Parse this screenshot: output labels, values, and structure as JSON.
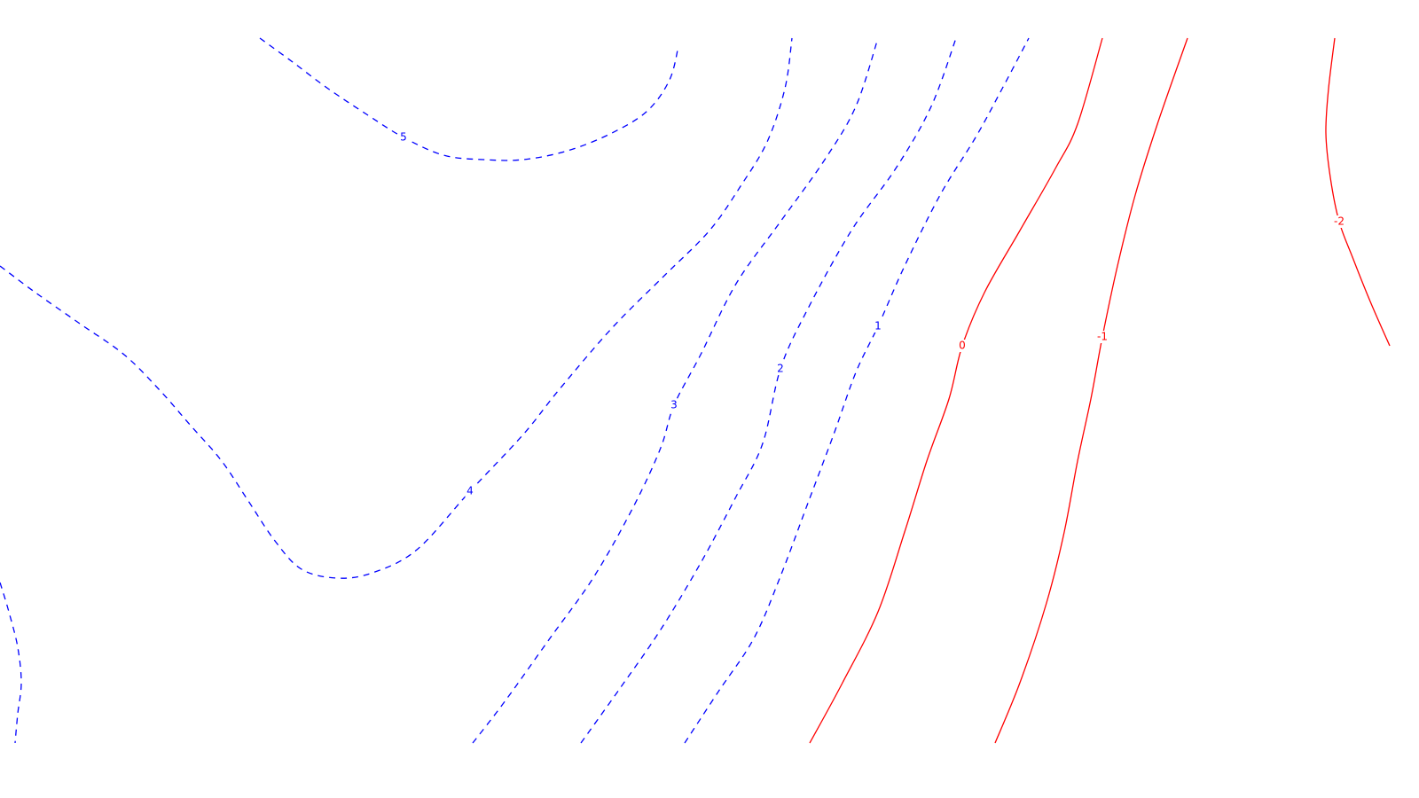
{
  "chart_data": {
    "type": "contour",
    "title": "",
    "xlabel": "",
    "ylabel": "",
    "xlim": [
      0,
      1600
    ],
    "ylim": [
      0,
      900
    ],
    "grid": false,
    "legend": "none",
    "colors": {
      "positive": "#0000ff",
      "zero_and_negative": "#ff0000"
    },
    "levels": [
      {
        "level": 5,
        "label": "5",
        "linestyle": "dashed",
        "color": "#0000ff",
        "paths": [
          [
            [
              293,
              857
            ],
            [
              330,
              830
            ],
            [
              370,
              800
            ],
            [
              415,
              770
            ],
            [
              455,
              745
            ],
            [
              500,
              725
            ],
            [
              545,
              720
            ],
            [
              590,
              720
            ],
            [
              640,
              730
            ],
            [
              690,
              750
            ],
            [
              730,
              775
            ],
            [
              755,
              810
            ],
            [
              765,
              848
            ]
          ]
        ],
        "label_at": [
          455,
          745
        ]
      },
      {
        "level": 4,
        "label": "4",
        "linestyle": "dashed",
        "color": "#0000ff",
        "paths": [
          [
            [
              0,
              600
            ],
            [
              40,
              570
            ],
            [
              90,
              535
            ],
            [
              140,
              500
            ],
            [
              180,
              460
            ],
            [
              215,
              420
            ],
            [
              250,
              380
            ],
            [
              280,
              335
            ],
            [
              310,
              290
            ],
            [
              340,
              258
            ],
            [
              380,
              248
            ],
            [
              420,
              254
            ],
            [
              470,
              280
            ],
            [
              530,
              346
            ],
            [
              590,
              410
            ],
            [
              630,
              460
            ],
            [
              690,
              530
            ],
            [
              750,
              590
            ],
            [
              800,
              640
            ],
            [
              835,
              690
            ],
            [
              865,
              740
            ],
            [
              885,
              800
            ],
            [
              893,
              857
            ]
          ],
          [
            [
              0,
              243
            ],
            [
              10,
              210
            ],
            [
              20,
              170
            ],
            [
              24,
              130
            ],
            [
              20,
              95
            ],
            [
              17,
              62
            ]
          ]
        ],
        "label_at": [
          530,
          346
        ]
      },
      {
        "level": 3,
        "label": "3",
        "linestyle": "dashed",
        "color": "#0000ff",
        "paths": [
          [
            [
              533,
              62
            ],
            [
              570,
              110
            ],
            [
              620,
              180
            ],
            [
              670,
              250
            ],
            [
              715,
              330
            ],
            [
              745,
              395
            ],
            [
              760,
              443
            ],
            [
              790,
              500
            ],
            [
              830,
              580
            ],
            [
              880,
              650
            ],
            [
              930,
              720
            ],
            [
              965,
              780
            ],
            [
              990,
              857
            ]
          ]
        ],
        "label_at": [
          760,
          443
        ]
      },
      {
        "level": 2,
        "label": "2",
        "linestyle": "dashed",
        "color": "#0000ff",
        "paths": [
          [
            [
              655,
              62
            ],
            [
              700,
              125
            ],
            [
              745,
              190
            ],
            [
              790,
              265
            ],
            [
              830,
              340
            ],
            [
              860,
              400
            ],
            [
              880,
              484
            ],
            [
              910,
              550
            ],
            [
              960,
              640
            ],
            [
              1010,
              710
            ],
            [
              1050,
              780
            ],
            [
              1078,
              857
            ]
          ]
        ],
        "label_at": [
          880,
          484
        ]
      },
      {
        "level": 1,
        "label": "1",
        "linestyle": "dashed",
        "color": "#0000ff",
        "paths": [
          [
            [
              772,
              62
            ],
            [
              810,
              120
            ],
            [
              850,
              180
            ],
            [
              880,
              250
            ],
            [
              910,
              330
            ],
            [
              940,
              410
            ],
            [
              965,
              480
            ],
            [
              990,
              532
            ],
            [
              1020,
              600
            ],
            [
              1060,
              680
            ],
            [
              1100,
              745
            ],
            [
              1130,
              800
            ],
            [
              1160,
              857
            ]
          ]
        ],
        "label_at": [
          990,
          532
        ]
      },
      {
        "level": 0,
        "label": "0",
        "linestyle": "solid",
        "color": "#ff0000",
        "paths": [
          [
            [
              913,
              62
            ],
            [
              950,
              130
            ],
            [
              990,
              210
            ],
            [
              1020,
              300
            ],
            [
              1045,
              380
            ],
            [
              1070,
              450
            ],
            [
              1085,
              510
            ],
            [
              1110,
              570
            ],
            [
              1150,
              640
            ],
            [
              1190,
              710
            ],
            [
              1215,
              760
            ],
            [
              1243,
              857
            ]
          ]
        ],
        "label_at": [
          1085,
          510
        ]
      },
      {
        "level": -1,
        "label": "-1",
        "linestyle": "solid",
        "color": "#ff0000",
        "paths": [
          [
            [
              1122,
              62
            ],
            [
              1150,
              130
            ],
            [
              1180,
              220
            ],
            [
              1200,
              300
            ],
            [
              1215,
              380
            ],
            [
              1230,
              450
            ],
            [
              1243,
              520
            ],
            [
              1260,
              600
            ],
            [
              1280,
              680
            ],
            [
              1305,
              760
            ],
            [
              1339,
              857
            ]
          ]
        ],
        "label_at": [
          1243,
          520
        ]
      },
      {
        "level": -2,
        "label": "-2",
        "linestyle": "solid",
        "color": "#ff0000",
        "paths": [
          [
            [
              1567,
              510
            ],
            [
              1545,
              560
            ],
            [
              1525,
              610
            ],
            [
              1510,
              650
            ],
            [
              1500,
              700
            ],
            [
              1495,
              750
            ],
            [
              1498,
              800
            ],
            [
              1505,
              857
            ]
          ]
        ],
        "label_at": [
          1510,
          650
        ]
      }
    ]
  }
}
